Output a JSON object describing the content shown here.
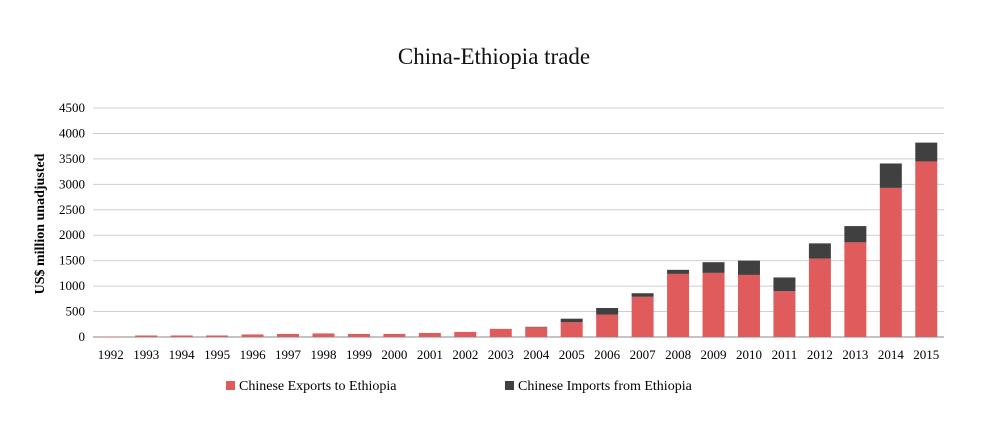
{
  "chart_data": {
    "type": "bar",
    "stacked": true,
    "title": "China-Ethiopia trade",
    "xlabel": "",
    "ylabel": "US$ million unadjusted",
    "ylim": [
      0,
      4500
    ],
    "yticks": [
      0,
      500,
      1000,
      1500,
      2000,
      2500,
      3000,
      3500,
      4000,
      4500
    ],
    "grid": true,
    "legend_position": "bottom",
    "categories": [
      "1992",
      "1993",
      "1994",
      "1995",
      "1996",
      "1997",
      "1998",
      "1999",
      "2000",
      "2001",
      "2002",
      "2003",
      "2004",
      "2005",
      "2006",
      "2007",
      "2008",
      "2009",
      "2010",
      "2011",
      "2012",
      "2013",
      "2014",
      "2015"
    ],
    "series": [
      {
        "name": "Chinese Exports to Ethiopia",
        "color": "#e05b5b",
        "values": [
          10,
          30,
          30,
          30,
          50,
          60,
          70,
          60,
          60,
          80,
          100,
          160,
          190,
          290,
          440,
          790,
          1240,
          1260,
          1220,
          900,
          1540,
          1860,
          2930,
          3450
        ]
      },
      {
        "name": "Chinese Imports from Ethiopia",
        "color": "#404040",
        "values": [
          0,
          0,
          0,
          0,
          0,
          0,
          0,
          0,
          0,
          0,
          0,
          0,
          10,
          70,
          130,
          70,
          80,
          210,
          280,
          270,
          300,
          320,
          480,
          370
        ]
      }
    ]
  }
}
